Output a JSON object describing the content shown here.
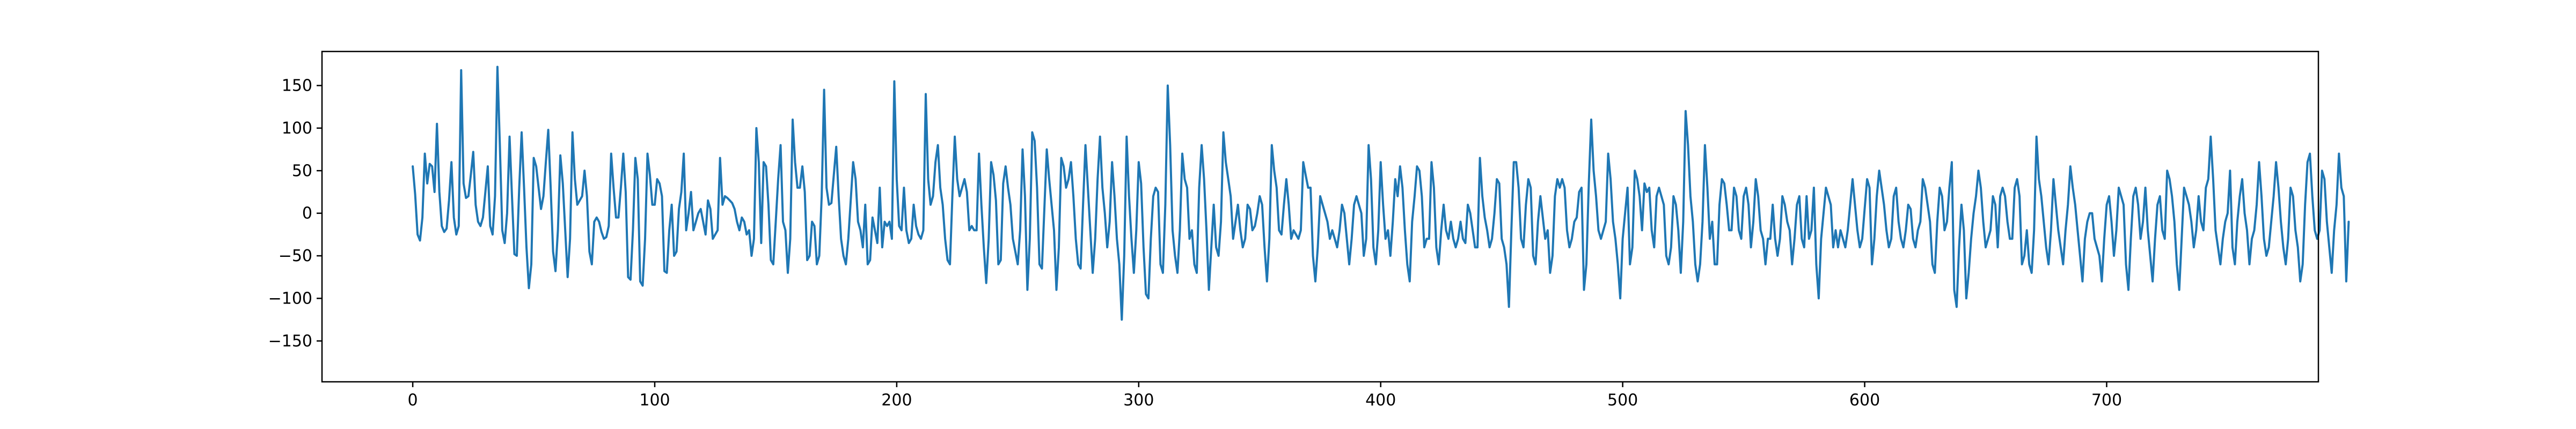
{
  "chart_data": {
    "type": "line",
    "title": "",
    "xlabel": "",
    "ylabel": "",
    "xlim": [
      -37.5,
      787.5
    ],
    "ylim": [
      -198,
      190
    ],
    "x_ticks": [
      0,
      100,
      200,
      300,
      400,
      500,
      600,
      700
    ],
    "y_ticks": [
      -150,
      -100,
      -50,
      0,
      50,
      100,
      150
    ],
    "x_tick_labels": [
      "0",
      "100",
      "200",
      "300",
      "400",
      "500",
      "600",
      "700"
    ],
    "y_tick_labels": [
      "−150",
      "−100",
      "−50",
      "0",
      "50",
      "100",
      "150"
    ],
    "grid": false,
    "legend": "none",
    "series": [
      {
        "color": "#1f77b4",
        "x_start": 0,
        "x_step": 1,
        "values": [
          55,
          22,
          -25,
          -32,
          -5,
          70,
          35,
          58,
          55,
          25,
          105,
          25,
          -15,
          -22,
          -18,
          15,
          60,
          -5,
          -25,
          -15,
          168,
          35,
          18,
          20,
          45,
          72,
          10,
          -10,
          -15,
          -5,
          25,
          55,
          -15,
          -25,
          20,
          172,
          80,
          -20,
          -35,
          0,
          90,
          20,
          -48,
          -50,
          30,
          95,
          30,
          -40,
          -88,
          -60,
          65,
          55,
          30,
          5,
          20,
          60,
          98,
          30,
          -45,
          -68,
          -20,
          68,
          35,
          -20,
          -75,
          -30,
          95,
          40,
          10,
          15,
          20,
          50,
          20,
          -45,
          -60,
          -10,
          -5,
          -10,
          -22,
          -30,
          -28,
          -15,
          70,
          30,
          -5,
          -5,
          30,
          70,
          25,
          -75,
          -78,
          -20,
          65,
          40,
          -80,
          -85,
          -30,
          70,
          45,
          10,
          10,
          40,
          35,
          20,
          -68,
          -70,
          -20,
          10,
          -50,
          -45,
          5,
          25,
          70,
          -20,
          0,
          25,
          -20,
          -10,
          0,
          5,
          -10,
          -25,
          15,
          5,
          -30,
          -25,
          -20,
          65,
          10,
          20,
          18,
          15,
          12,
          5,
          -10,
          -20,
          -5,
          -10,
          -25,
          -20,
          -50,
          -30,
          100,
          60,
          -35,
          60,
          55,
          10,
          -55,
          -60,
          -10,
          40,
          80,
          -10,
          -20,
          -70,
          -30,
          110,
          60,
          30,
          30,
          55,
          25,
          -55,
          -50,
          -10,
          -15,
          -60,
          -50,
          20,
          145,
          30,
          10,
          12,
          45,
          78,
          20,
          -30,
          -50,
          -60,
          -30,
          15,
          60,
          40,
          -10,
          -20,
          -40,
          10,
          -60,
          -55,
          -5,
          -20,
          -35,
          30,
          -40,
          -10,
          -15,
          -10,
          -30,
          155,
          40,
          -15,
          -20,
          30,
          -20,
          -35,
          -30,
          10,
          -15,
          -25,
          -30,
          -20,
          140,
          40,
          10,
          20,
          60,
          80,
          30,
          10,
          -30,
          -55,
          -60,
          20,
          90,
          40,
          20,
          30,
          40,
          25,
          -20,
          -15,
          -20,
          -20,
          70,
          10,
          -40,
          -82,
          -30,
          60,
          45,
          15,
          -60,
          -55,
          35,
          55,
          30,
          10,
          -30,
          -45,
          -60,
          -20,
          75,
          20,
          -90,
          -30,
          95,
          85,
          30,
          -60,
          -65,
          5,
          75,
          40,
          10,
          -20,
          -90,
          -40,
          65,
          55,
          30,
          40,
          60,
          20,
          -30,
          -60,
          -65,
          10,
          80,
          30,
          -20,
          -70,
          -30,
          40,
          90,
          30,
          0,
          -40,
          -10,
          60,
          20,
          -30,
          -60,
          -125,
          -50,
          90,
          20,
          -30,
          -70,
          -20,
          60,
          35,
          -40,
          -95,
          -100,
          -30,
          20,
          30,
          25,
          -60,
          -70,
          10,
          150,
          80,
          -20,
          -50,
          -70,
          -20,
          70,
          40,
          30,
          -30,
          -20,
          -60,
          -70,
          30,
          80,
          40,
          -20,
          -90,
          -40,
          10,
          -40,
          -50,
          -10,
          95,
          60,
          40,
          20,
          -30,
          -10,
          10,
          -20,
          -40,
          -30,
          10,
          5,
          -20,
          -15,
          0,
          20,
          10,
          -40,
          -80,
          -30,
          80,
          50,
          30,
          -20,
          -25,
          10,
          40,
          10,
          -30,
          -20,
          -25,
          -30,
          -20,
          60,
          45,
          30,
          30,
          -50,
          -80,
          -40,
          20,
          10,
          0,
          -10,
          -30,
          -20,
          -30,
          -40,
          -20,
          10,
          0,
          -30,
          -60,
          -30,
          10,
          20,
          10,
          0,
          -50,
          -30,
          80,
          40,
          -40,
          -60,
          -20,
          60,
          10,
          -30,
          -20,
          -50,
          -10,
          40,
          20,
          55,
          30,
          -20,
          -60,
          -80,
          -10,
          20,
          55,
          50,
          20,
          -40,
          -30,
          -30,
          60,
          30,
          -40,
          -60,
          -20,
          10,
          -20,
          -30,
          -10,
          -30,
          -40,
          -30,
          -10,
          -30,
          -35,
          10,
          0,
          -20,
          -40,
          -40,
          65,
          20,
          -5,
          -20,
          -40,
          -30,
          0,
          40,
          35,
          -30,
          -40,
          -60,
          -110,
          -20,
          60,
          60,
          30,
          -30,
          -40,
          10,
          40,
          30,
          -50,
          -60,
          -10,
          20,
          -5,
          -30,
          -20,
          -70,
          -50,
          20,
          40,
          30,
          40,
          30,
          -20,
          -40,
          -30,
          -10,
          -5,
          25,
          30,
          -90,
          -60,
          35,
          110,
          50,
          20,
          -20,
          -30,
          -20,
          -10,
          70,
          40,
          -10,
          -30,
          -60,
          -100,
          -30,
          0,
          30,
          -60,
          -40,
          50,
          40,
          20,
          -20,
          35,
          25,
          30,
          -20,
          -40,
          20,
          30,
          20,
          10,
          -50,
          -60,
          -40,
          20,
          10,
          -20,
          -70,
          -10,
          120,
          80,
          20,
          -10,
          -60,
          -80,
          -60,
          -10,
          80,
          30,
          -30,
          -10,
          -60,
          -60,
          10,
          40,
          35,
          10,
          -20,
          -20,
          30,
          20,
          -20,
          -30,
          20,
          30,
          10,
          -40,
          -10,
          40,
          20,
          -20,
          -30,
          -60,
          -30,
          -30,
          10,
          -30,
          -50,
          -30,
          20,
          10,
          -10,
          -20,
          -60,
          -30,
          10,
          20,
          -30,
          -40,
          20,
          -30,
          -20,
          30,
          -60,
          -100,
          -30,
          0,
          30,
          20,
          10,
          -40,
          -20,
          -40,
          -20,
          -30,
          -40,
          -20,
          10,
          40,
          10,
          -20,
          -40,
          -30,
          5,
          40,
          30,
          -60,
          -30,
          20,
          50,
          30,
          10,
          -20,
          -40,
          -30,
          20,
          30,
          -10,
          -30,
          -40,
          -20,
          10,
          5,
          -30,
          -40,
          -20,
          -10,
          40,
          30,
          10,
          -10,
          -60,
          -70,
          -10,
          30,
          20,
          -20,
          -10,
          30,
          60,
          -90,
          -110,
          -40,
          10,
          -20,
          -100,
          -70,
          -30,
          0,
          20,
          50,
          30,
          -10,
          -40,
          -30,
          -20,
          20,
          10,
          -40,
          20,
          30,
          20,
          -10,
          -30,
          -30,
          30,
          40,
          20,
          -60,
          -50,
          -20,
          -60,
          -70,
          -20,
          90,
          40,
          20,
          -10,
          -40,
          -60,
          -20,
          40,
          10,
          -20,
          -40,
          -60,
          -20,
          10,
          55,
          30,
          10,
          -20,
          -50,
          -80,
          -30,
          -10,
          0,
          0,
          -30,
          -40,
          -50,
          -80,
          -30,
          10,
          20,
          -10,
          -50,
          -20,
          30,
          20,
          10,
          -60,
          -90,
          -30,
          20,
          30,
          10,
          -30,
          -10,
          30,
          -20,
          -50,
          -80,
          -30,
          10,
          20,
          -20,
          -30,
          50,
          40,
          20,
          -10,
          -60,
          -90,
          -30,
          30,
          20,
          10,
          -10,
          -40,
          -20,
          20,
          -10,
          -20,
          30,
          40,
          90,
          40,
          -20,
          -40,
          -60,
          -30,
          -10,
          0,
          50,
          -40,
          -60,
          -10,
          20,
          40,
          0,
          -20,
          -60,
          -30,
          -20,
          10,
          60,
          20,
          -30,
          -50,
          -40,
          -10,
          20,
          60,
          30,
          -10,
          -40,
          -60,
          -30,
          30,
          20,
          -20,
          -40,
          -80,
          -60,
          10,
          60,
          70,
          20,
          -20,
          -30,
          -20,
          50,
          40,
          -10,
          -40,
          -70,
          -20,
          10,
          70,
          30,
          20,
          -80,
          -10
        ]
      }
    ]
  }
}
